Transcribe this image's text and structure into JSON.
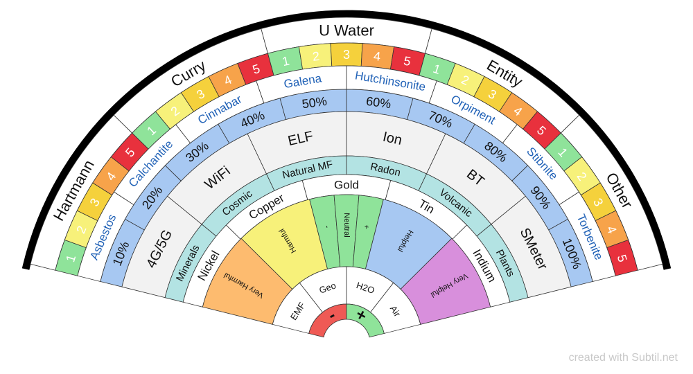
{
  "colors": {
    "lvl1": "#8fe39a",
    "lvl2": "#f7f17a",
    "lvl3": "#f5d13c",
    "lvl4": "#f7a34a",
    "lvl5": "#e8313d",
    "blue_band": "#a7c8f2",
    "grey_band": "#f2f2f2",
    "teal_band": "#b3e3e3",
    "link_text": "#2162b7",
    "very_harmful": "#fdbb6f",
    "harmful": "#f7f17a",
    "neutral_group": "#8fe39a",
    "helpful": "#a7c8f2",
    "very_helpful": "#d88fdc",
    "minus": "#ef5a55",
    "plus": "#8fe39a",
    "outer_rim": "#000000"
  },
  "outer_ring": {
    "groups": [
      {
        "title": "Hartmann",
        "levels": [
          "1",
          "2",
          "3",
          "4",
          "5"
        ]
      },
      {
        "title": "Curry",
        "levels": [
          "1",
          "2",
          "3",
          "4",
          "5"
        ]
      },
      {
        "title": "U Water",
        "levels": [
          "1",
          "2",
          "3",
          "4",
          "5"
        ]
      },
      {
        "title": "Entity",
        "levels": [
          "1",
          "2",
          "3",
          "4",
          "5"
        ]
      },
      {
        "title": "Other",
        "levels": [
          "1",
          "2",
          "3",
          "4",
          "5"
        ]
      }
    ]
  },
  "mineral_ring": [
    "Asbestos",
    "Calchantite",
    "Cinnabar",
    "Galena",
    "Hutchinsonite",
    "Orpiment",
    "Stibnite",
    "Torbenite"
  ],
  "percent_ring": [
    "10%",
    "20%",
    "30%",
    "40%",
    "50%",
    "60%",
    "70%",
    "80%",
    "90%",
    "100%"
  ],
  "field_ring": [
    "4G/5G",
    "WiFi",
    "ELF",
    "Ion",
    "BT",
    "SMeter"
  ],
  "teal_ring": [
    "Minerals",
    "Cosmic",
    "Natural MF",
    "Radon",
    "Volcanic",
    "Plants"
  ],
  "metal_ring": [
    "Nickel",
    "Copper",
    "Gold",
    "Tin",
    "Indium"
  ],
  "scale_ring": [
    "Very Harmful",
    "Harmful",
    "-",
    "Neutral",
    "+",
    "Helpful",
    "Very Helpful"
  ],
  "source_ring": [
    "EMF",
    "Geo",
    "H2O",
    "Air"
  ],
  "center": {
    "minus": "-",
    "plus": "+"
  },
  "credit": "created with Subtil.net"
}
